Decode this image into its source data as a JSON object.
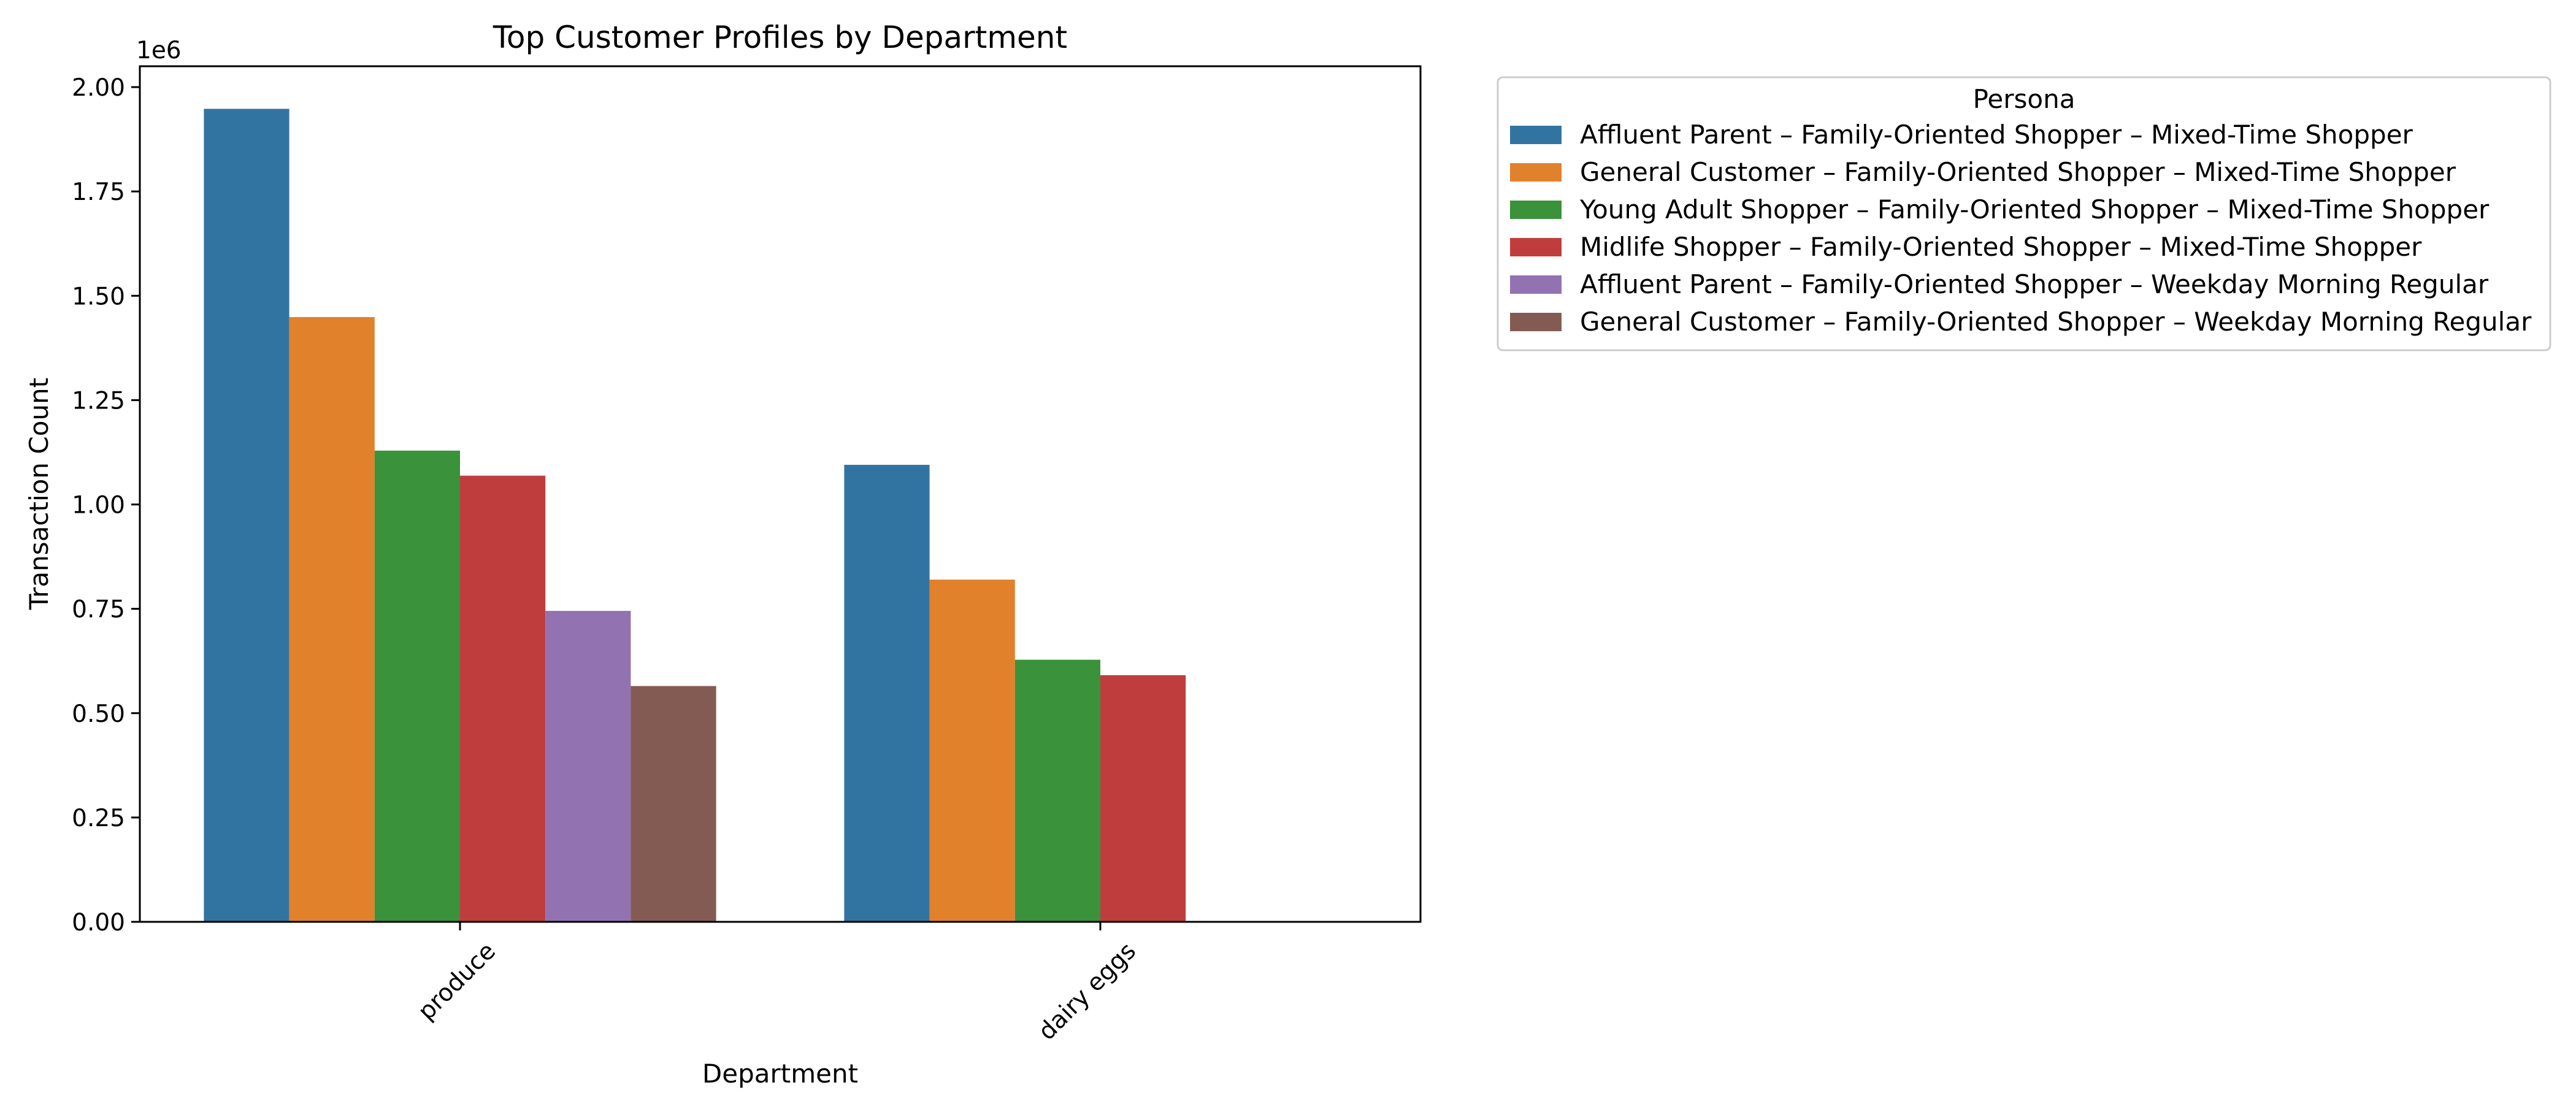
{
  "chart_data": {
    "type": "bar",
    "title": "Top Customer Profiles by Department",
    "xlabel": "Department",
    "ylabel": "Transaction Count",
    "y_offset_label": "1e6",
    "ylim": [
      0,
      2050000
    ],
    "yticks": [
      0,
      250000,
      500000,
      750000,
      1000000,
      1250000,
      1500000,
      1750000,
      2000000
    ],
    "ytick_labels": [
      "0.00",
      "0.25",
      "0.50",
      "0.75",
      "1.00",
      "1.25",
      "1.50",
      "1.75",
      "2.00"
    ],
    "categories": [
      "produce",
      "dairy eggs"
    ],
    "legend_title": "Persona",
    "legend_position": "outside-right",
    "grid": false,
    "series": [
      {
        "name": "Affluent Parent – Family-Oriented Shopper – Mixed-Time Shopper",
        "color": "#3274a1",
        "values": [
          1948000,
          1095000
        ]
      },
      {
        "name": "General Customer – Family-Oriented Shopper – Mixed-Time Shopper",
        "color": "#e1812c",
        "values": [
          1449000,
          820000
        ]
      },
      {
        "name": "Young Adult Shopper – Family-Oriented Shopper – Mixed-Time Shopper",
        "color": "#3a923a",
        "values": [
          1129000,
          628000
        ]
      },
      {
        "name": "Midlife Shopper – Family-Oriented Shopper – Mixed-Time Shopper",
        "color": "#c03d3e",
        "values": [
          1069000,
          591000
        ]
      },
      {
        "name": "Affluent Parent – Family-Oriented Shopper – Weekday Morning Regular",
        "color": "#9372b2",
        "values": [
          745000,
          null
        ]
      },
      {
        "name": "General Customer – Family-Oriented Shopper – Weekday Morning Regular",
        "color": "#845b53",
        "values": [
          565000,
          null
        ]
      }
    ]
  }
}
